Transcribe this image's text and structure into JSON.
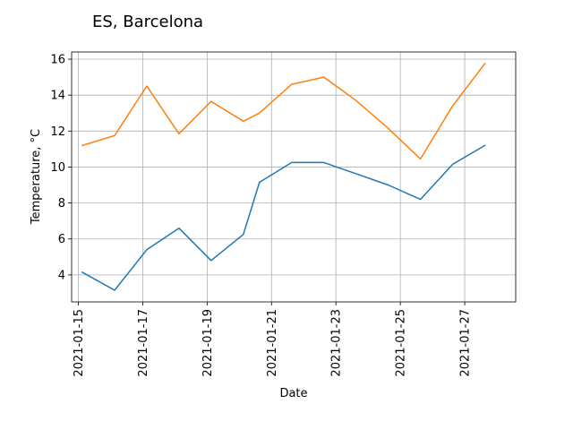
{
  "chart_data": {
    "type": "line",
    "title": "ES, Barcelona",
    "xlabel": "Date",
    "ylabel": "Temperature, °C",
    "x_axis_type": "date",
    "xlim": [
      "2021-01-14T19:00",
      "2021-01-28T14:00"
    ],
    "ylim": [
      2.5,
      16.4
    ],
    "x_ticks": [
      "2021-01-15",
      "2021-01-17",
      "2021-01-19",
      "2021-01-21",
      "2021-01-23",
      "2021-01-25",
      "2021-01-27"
    ],
    "y_ticks": [
      4,
      6,
      8,
      10,
      12,
      14,
      16
    ],
    "grid": true,
    "series": [
      {
        "color": "#1f77b4",
        "points": [
          {
            "x": "2021-01-15T03:00",
            "y": 4.15
          },
          {
            "x": "2021-01-16T03:00",
            "y": 3.15
          },
          {
            "x": "2021-01-17T03:00",
            "y": 5.4
          },
          {
            "x": "2021-01-18T03:00",
            "y": 6.6
          },
          {
            "x": "2021-01-19T03:00",
            "y": 4.8
          },
          {
            "x": "2021-01-20T03:00",
            "y": 6.25
          },
          {
            "x": "2021-01-20T15:00",
            "y": 9.15
          },
          {
            "x": "2021-01-21T15:00",
            "y": 10.25
          },
          {
            "x": "2021-01-22T15:00",
            "y": 10.25
          },
          {
            "x": "2021-01-24T15:00",
            "y": 9.0
          },
          {
            "x": "2021-01-25T15:00",
            "y": 8.2
          },
          {
            "x": "2021-01-26T15:00",
            "y": 10.15
          },
          {
            "x": "2021-01-27T15:00",
            "y": 11.2
          }
        ]
      },
      {
        "color": "#ff7f0e",
        "points": [
          {
            "x": "2021-01-15T03:00",
            "y": 11.2
          },
          {
            "x": "2021-01-16T03:00",
            "y": 11.75
          },
          {
            "x": "2021-01-17T03:00",
            "y": 14.5
          },
          {
            "x": "2021-01-18T03:00",
            "y": 11.85
          },
          {
            "x": "2021-01-19T03:00",
            "y": 13.65
          },
          {
            "x": "2021-01-20T03:00",
            "y": 12.55
          },
          {
            "x": "2021-01-20T15:00",
            "y": 13.0
          },
          {
            "x": "2021-01-21T15:00",
            "y": 14.6
          },
          {
            "x": "2021-01-22T15:00",
            "y": 15.0
          },
          {
            "x": "2021-01-23T15:00",
            "y": 13.7
          },
          {
            "x": "2021-01-24T15:00",
            "y": 12.15
          },
          {
            "x": "2021-01-25T15:00",
            "y": 10.45
          },
          {
            "x": "2021-01-26T15:00",
            "y": 13.4
          },
          {
            "x": "2021-01-27T15:00",
            "y": 15.75
          }
        ]
      }
    ]
  }
}
